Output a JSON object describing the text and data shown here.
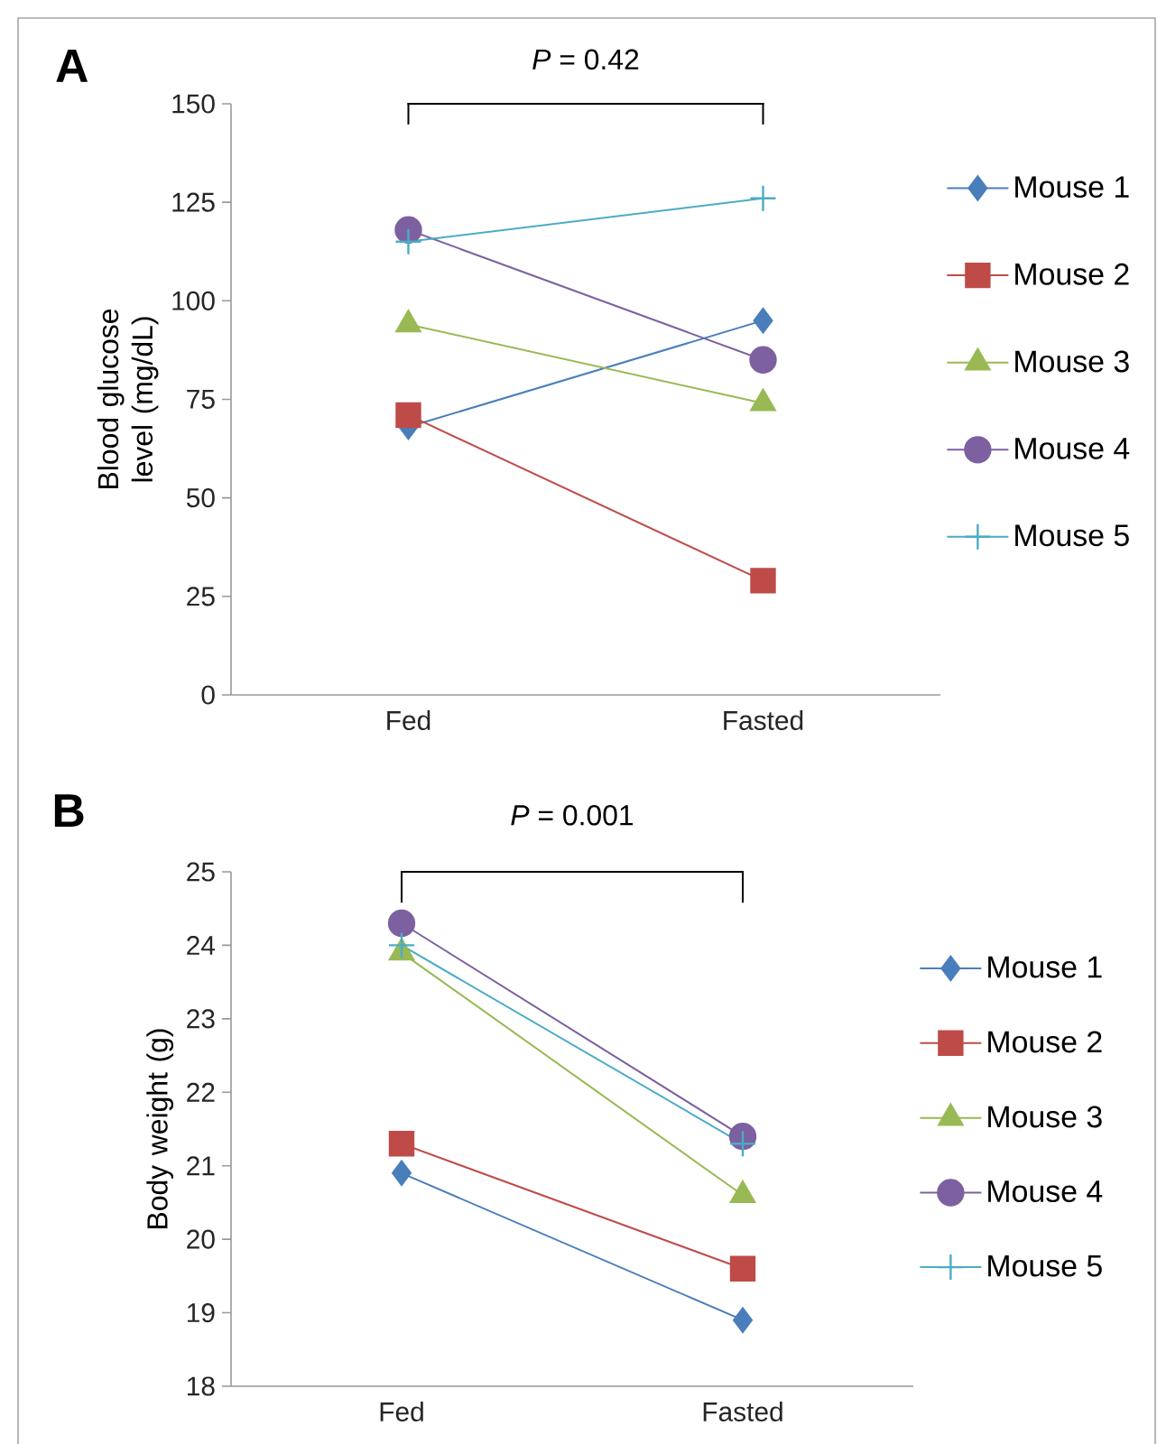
{
  "chart_data": [
    {
      "type": "line",
      "title": "A",
      "ylabel": "Blood glucose level (mg/dL)",
      "categories": [
        "Fed",
        "Fasted"
      ],
      "ylim": [
        0,
        150
      ],
      "yticks": [
        0,
        25,
        50,
        75,
        100,
        125,
        150
      ],
      "legend": "right",
      "annotations": [
        "*P* = 0.42"
      ],
      "series": [
        {
          "name": "Mouse 1",
          "color": "#4a7ebb",
          "marker": "diamond",
          "values": [
            68,
            95
          ]
        },
        {
          "name": "Mouse 2",
          "color": "#be4b48",
          "marker": "square",
          "values": [
            71,
            29
          ]
        },
        {
          "name": "Mouse 3",
          "color": "#98b954",
          "marker": "triangle",
          "values": [
            94,
            74
          ]
        },
        {
          "name": "Mouse 4",
          "color": "#7d60a0",
          "marker": "circle",
          "values": [
            118,
            85
          ]
        },
        {
          "name": "Mouse 5",
          "color": "#4bacc6",
          "marker": "cross",
          "values": [
            115,
            126
          ]
        }
      ]
    },
    {
      "type": "line",
      "title": "B",
      "ylabel": "Body weight (g)",
      "categories": [
        "Fed",
        "Fasted"
      ],
      "ylim": [
        18,
        25
      ],
      "yticks": [
        18,
        19,
        20,
        21,
        22,
        23,
        24,
        25
      ],
      "legend": "right",
      "annotations": [
        "*P* = 0.001"
      ],
      "series": [
        {
          "name": "Mouse 1",
          "color": "#4a7ebb",
          "marker": "diamond",
          "values": [
            20.9,
            18.9
          ]
        },
        {
          "name": "Mouse 2",
          "color": "#be4b48",
          "marker": "square",
          "values": [
            21.3,
            19.6
          ]
        },
        {
          "name": "Mouse 3",
          "color": "#98b954",
          "marker": "triangle",
          "values": [
            23.9,
            20.6
          ]
        },
        {
          "name": "Mouse 4",
          "color": "#7d60a0",
          "marker": "circle",
          "values": [
            24.3,
            21.4
          ]
        },
        {
          "name": "Mouse 5",
          "color": "#4bacc6",
          "marker": "cross",
          "values": [
            24.0,
            21.3
          ]
        }
      ]
    }
  ]
}
